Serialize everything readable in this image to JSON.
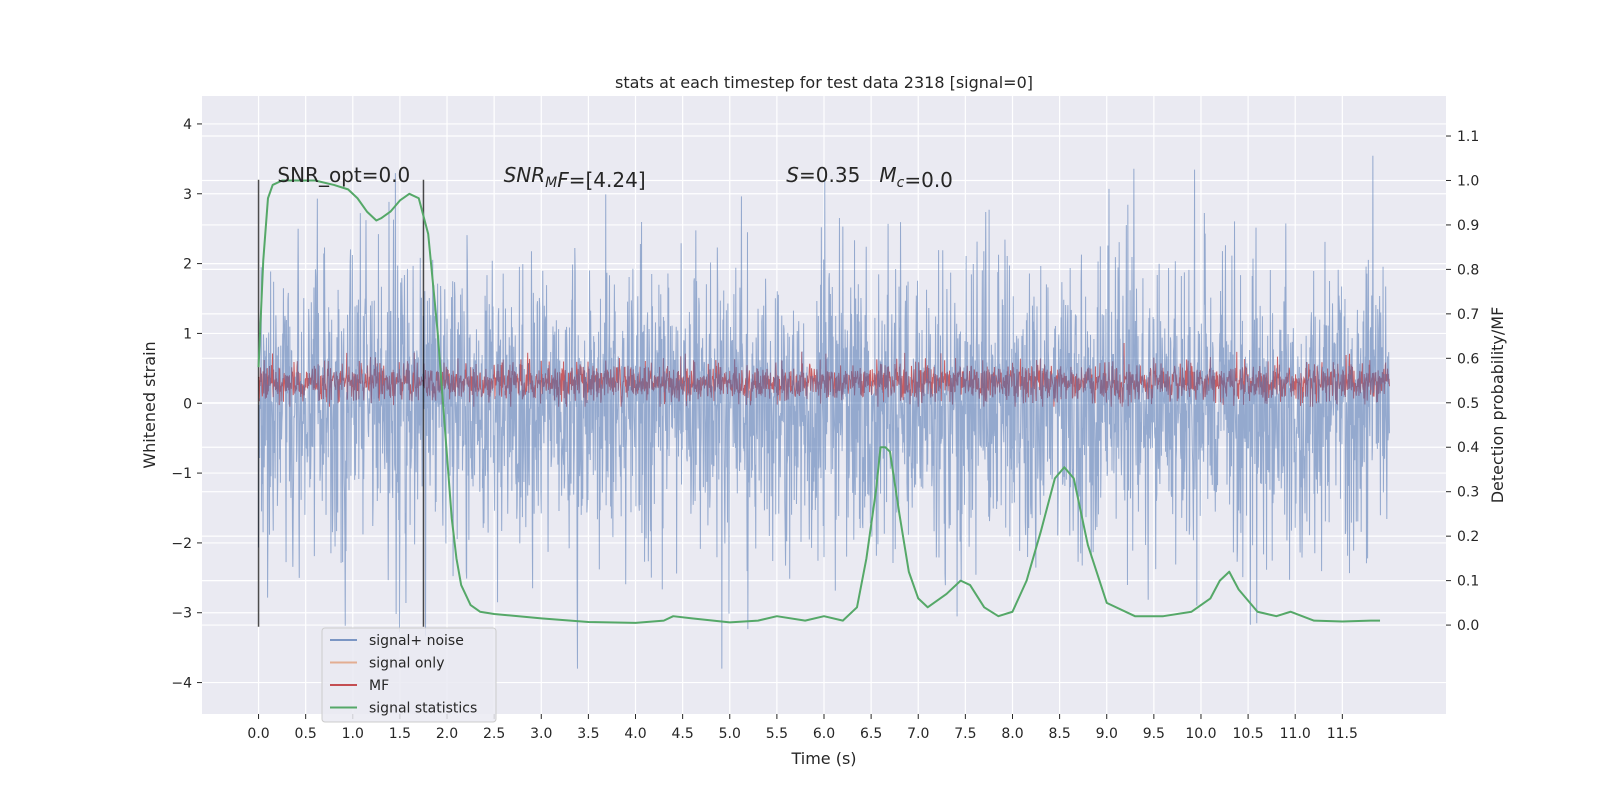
{
  "chart_data": {
    "type": "line",
    "title": "stats at each timestep for test data 2318 [signal=0]",
    "xlabel": "Time (s)",
    "ylabel_left": "Whitened strain",
    "ylabel_right": "Detection probability/MF",
    "xlim": [
      -0.6,
      12.6
    ],
    "ylim_left": [
      -4.45,
      4.4
    ],
    "ylim_right": [
      -0.2,
      1.19
    ],
    "x_ticks": [
      0.0,
      0.5,
      1.0,
      1.5,
      2.0,
      2.5,
      3.0,
      3.5,
      4.0,
      4.5,
      5.0,
      5.5,
      6.0,
      6.5,
      7.0,
      7.5,
      8.0,
      8.5,
      9.0,
      9.5,
      10.0,
      10.5,
      11.0,
      11.5
    ],
    "x_tick_labels": [
      "0.0",
      "0.5",
      "1.0",
      "1.5",
      "2.0",
      "2.5",
      "3.0",
      "3.5",
      "4.0",
      "4.5",
      "5.0",
      "5.5",
      "6.0",
      "6.5",
      "7.0",
      "7.5",
      "8.0",
      "8.5",
      "9.0",
      "9.5",
      "10.0",
      "10.5",
      "11.0",
      "11.5"
    ],
    "y_left_ticks": [
      -4,
      -3,
      -2,
      -1,
      0,
      1,
      2,
      3,
      4
    ],
    "y_left_tick_labels": [
      "−4",
      "−3",
      "−2",
      "−1",
      "0",
      "1",
      "2",
      "3",
      "4"
    ],
    "y_right_ticks": [
      0.0,
      0.1,
      0.2,
      0.3,
      0.4,
      0.5,
      0.6,
      0.7,
      0.8,
      0.9,
      1.0,
      1.1
    ],
    "y_right_tick_labels": [
      "0.0",
      "0.1",
      "0.2",
      "0.3",
      "0.4",
      "0.5",
      "0.6",
      "0.7",
      "0.8",
      "0.9",
      "1.0",
      "1.1"
    ],
    "grid": true,
    "legend_position": "bottom-left",
    "series": [
      {
        "name": "signal+ noise",
        "color": "#4c72b0",
        "axis": "left",
        "noise_band": {
          "x_start": 0.0,
          "x_end": 12.0,
          "typical_min": -3.2,
          "typical_max": 3.2,
          "sample_step": 0.004
        }
      },
      {
        "name": "signal only",
        "color": "#dd8452",
        "axis": "left",
        "values": []
      },
      {
        "name": "MF",
        "color": "#c44e52",
        "axis": "left",
        "noise_band": {
          "x_start": 0.0,
          "x_end": 12.0,
          "typical_min": 0.0,
          "typical_max": 0.8,
          "sample_step": 0.004
        }
      },
      {
        "name": "signal statistics",
        "color": "#55a868",
        "axis": "right",
        "x": [
          0.0,
          0.05,
          0.1,
          0.15,
          0.25,
          0.4,
          0.6,
          0.8,
          0.95,
          1.05,
          1.15,
          1.25,
          1.3,
          1.4,
          1.5,
          1.6,
          1.7,
          1.8,
          1.9,
          2.0,
          2.05,
          2.1,
          2.15,
          2.25,
          2.35,
          2.5,
          3.0,
          3.5,
          4.0,
          4.3,
          4.4,
          4.6,
          5.0,
          5.3,
          5.5,
          5.8,
          6.0,
          6.2,
          6.35,
          6.45,
          6.55,
          6.6,
          6.65,
          6.7,
          6.8,
          6.9,
          7.0,
          7.1,
          7.3,
          7.45,
          7.55,
          7.7,
          7.85,
          8.0,
          8.15,
          8.3,
          8.45,
          8.55,
          8.65,
          8.8,
          9.0,
          9.3,
          9.6,
          9.9,
          10.1,
          10.2,
          10.3,
          10.4,
          10.6,
          10.8,
          10.95,
          11.2,
          11.5,
          11.8,
          11.9
        ],
        "values": [
          0.58,
          0.82,
          0.96,
          0.99,
          1.0,
          1.0,
          1.0,
          0.99,
          0.98,
          0.96,
          0.93,
          0.91,
          0.915,
          0.93,
          0.955,
          0.97,
          0.96,
          0.88,
          0.66,
          0.38,
          0.24,
          0.15,
          0.09,
          0.045,
          0.03,
          0.025,
          0.015,
          0.007,
          0.005,
          0.01,
          0.02,
          0.015,
          0.006,
          0.01,
          0.02,
          0.01,
          0.02,
          0.01,
          0.04,
          0.15,
          0.3,
          0.4,
          0.4,
          0.39,
          0.25,
          0.12,
          0.06,
          0.04,
          0.07,
          0.1,
          0.09,
          0.04,
          0.02,
          0.03,
          0.1,
          0.21,
          0.33,
          0.355,
          0.33,
          0.18,
          0.05,
          0.02,
          0.02,
          0.03,
          0.06,
          0.1,
          0.12,
          0.08,
          0.03,
          0.02,
          0.03,
          0.01,
          0.008,
          0.01,
          0.01
        ]
      }
    ],
    "vertical_lines": [
      {
        "x": 0.0,
        "y_from": -3.2,
        "y_to": 3.2,
        "color": "#000000"
      },
      {
        "x": 1.75,
        "y_from": -3.2,
        "y_to": 3.2,
        "color": "#000000"
      }
    ],
    "annotations": [
      {
        "name": "snr-opt",
        "x": 0.2,
        "y": 3.2,
        "text": "SNR_opt=0.0"
      },
      {
        "name": "snr-mf",
        "x": 2.6,
        "y": 3.2,
        "text_parts": [
          {
            "t": "SNR",
            "italic": true
          },
          {
            "t": "M",
            "italic": true,
            "sub": true
          },
          {
            "t": "F",
            "italic": true
          },
          {
            "t": "=[4.24]"
          }
        ]
      },
      {
        "name": "s-mc",
        "x": 5.6,
        "y": 3.2,
        "text_parts": [
          {
            "t": "S",
            "italic": true
          },
          {
            "t": "=0.35   "
          },
          {
            "t": "M",
            "italic": true
          },
          {
            "t": "c",
            "italic": true,
            "sub": true
          },
          {
            "t": "=0.0"
          }
        ]
      }
    ]
  }
}
